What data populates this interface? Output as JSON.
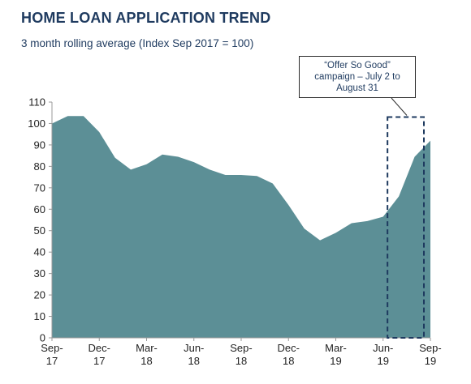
{
  "title": "HOME LOAN APPLICATION TREND",
  "subtitle": "3 month rolling average (Index Sep 2017 = 100)",
  "annotation": {
    "lines": [
      "“Offer So Good”",
      "campaign – July 2 to",
      "August 31"
    ]
  },
  "colors": {
    "area": "#5c8f96",
    "text": "#1e3a5f",
    "highlight": "#1e3a5f"
  },
  "chart_data": {
    "type": "area",
    "title": "HOME LOAN APPLICATION TREND",
    "subtitle": "3 month rolling average (Index Sep 2017 = 100)",
    "x_labels": [
      [
        "Sep-",
        "17"
      ],
      [
        "Dec-",
        "17"
      ],
      [
        "Mar-",
        "18"
      ],
      [
        "Jun-",
        "18"
      ],
      [
        "Sep-",
        "18"
      ],
      [
        "Dec-",
        "18"
      ],
      [
        "Mar-",
        "19"
      ],
      [
        "Jun-",
        "19"
      ],
      [
        "Sep-",
        "19"
      ]
    ],
    "x": [
      "Sep-17",
      "Oct-17",
      "Nov-17",
      "Dec-17",
      "Jan-18",
      "Feb-18",
      "Mar-18",
      "Apr-18",
      "May-18",
      "Jun-18",
      "Jul-18",
      "Aug-18",
      "Sep-18",
      "Oct-18",
      "Nov-18",
      "Dec-18",
      "Jan-19",
      "Feb-19",
      "Mar-19",
      "Apr-19",
      "May-19",
      "Jun-19",
      "Jul-19",
      "Aug-19",
      "Sep-19"
    ],
    "values": [
      100,
      103.5,
      103.5,
      96,
      84,
      78.5,
      81,
      85.5,
      84.5,
      82,
      78.5,
      76,
      76,
      75.5,
      72,
      62,
      51,
      45.5,
      49,
      53.5,
      54.5,
      56.5,
      66,
      84.5,
      92
    ],
    "yticks": [
      0,
      10,
      20,
      30,
      40,
      50,
      60,
      70,
      80,
      90,
      100,
      110
    ],
    "ylim": [
      0,
      110
    ],
    "grid": false,
    "highlight_range": [
      "Jul-19",
      "Sep-19"
    ]
  }
}
